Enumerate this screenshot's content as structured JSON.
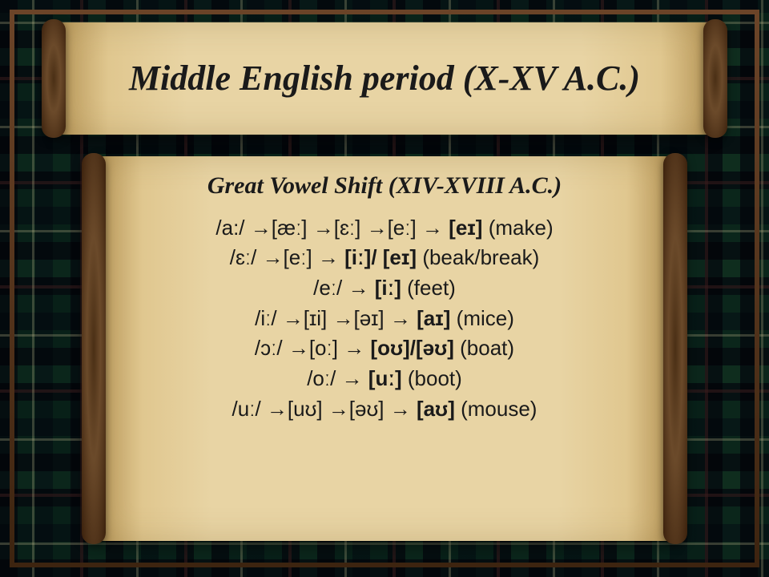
{
  "title": "Middle English period (X-XV A.C.)",
  "subtitle": "Great Vowel Shift (XIV-XVIII A.C.)",
  "colors": {
    "parchment": "#e8d4a4",
    "parchment_edge": "#b89758",
    "scroll_rod": "#4a2f15",
    "text": "#1a1a1a",
    "frame": "#5a3820",
    "tartan_dark": "#1a2833",
    "tartan_green": "#2d5a4f",
    "tartan_accent": "#3d6b58"
  },
  "typography": {
    "title_fontsize": 44,
    "subtitle_fontsize": 30,
    "body_fontsize": 26,
    "title_style": "bold italic serif",
    "body_family": "sans-serif"
  },
  "vowel_shifts": [
    {
      "start": "/a:/",
      "chain": [
        "[æː]",
        "[ɛː]",
        "[eː]"
      ],
      "result": "[eɪ]",
      "example": "(make)"
    },
    {
      "start": "/ɛː/",
      "chain": [
        "[eː]"
      ],
      "result": "[iː]/ [eɪ]",
      "example": "(beak/break)"
    },
    {
      "start": "/eː/",
      "chain": [],
      "result": "[iː]",
      "example": "(feet)"
    },
    {
      "start": "/iː/",
      "chain": [
        "[ɪi]",
        "[əɪ]"
      ],
      "result": "[aɪ]",
      "example": "(mice)"
    },
    {
      "start": "/ɔː/",
      "chain": [
        "[oː]"
      ],
      "result": "[oʊ]/[əʊ]",
      "example": "(boat)"
    },
    {
      "start": "/oː/",
      "chain": [],
      "result": "[uː]",
      "example": "(boot)"
    },
    {
      "start": "/uː/",
      "chain": [
        "[uʊ]",
        "[əʊ]"
      ],
      "result": "[aʊ]",
      "example": "(mouse)"
    }
  ]
}
